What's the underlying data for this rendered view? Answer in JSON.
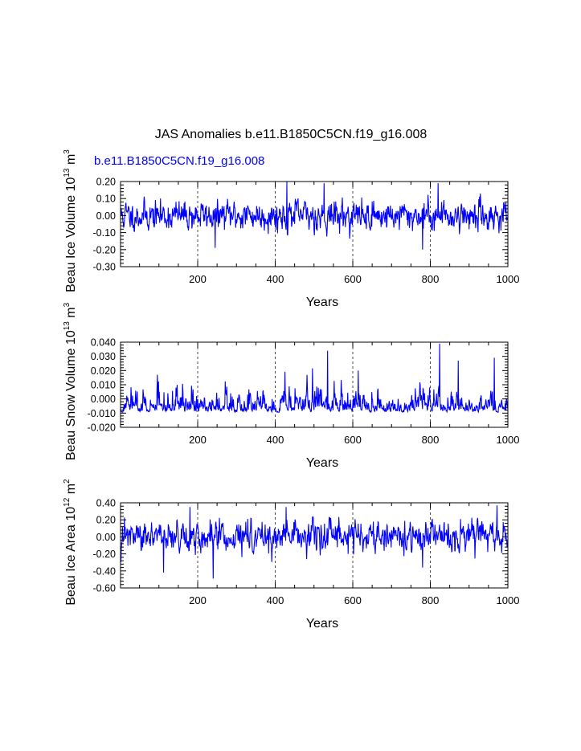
{
  "title": "JAS Anomalies b.e11.B1850C5CN.f19_g16.008",
  "series_label": "b.e11.B1850C5CN.f19_g16.008",
  "colors": {
    "series": "#0000ff",
    "axis": "#000000",
    "grid": "#000000",
    "background": "#ffffff"
  },
  "chart_data": [
    {
      "type": "line",
      "ylabel_main": "Beau Ice Volume 10",
      "ylabel_exp": "13",
      "ylabel_unit": " m",
      "ylabel_unit_exp": "3",
      "xlabel": "Years",
      "xlim": [
        1,
        1000
      ],
      "ylim": [
        -0.3,
        0.2
      ],
      "xticks": [
        200,
        400,
        600,
        800,
        1000
      ],
      "xtick_labels": [
        "200",
        "400",
        "600",
        "800",
        "1000"
      ],
      "yticks": [
        0.2,
        0.1,
        0.0,
        -0.1,
        -0.2,
        -0.3
      ],
      "ytick_labels": [
        "0.20",
        "0.10",
        "0.00",
        "-0.10",
        "-0.20",
        "-0.30"
      ],
      "grid": "vertical dashed at x ticks",
      "data_summary": {
        "n_points": 1000,
        "min": -0.2,
        "max": 0.2,
        "mean": 0.0,
        "amplitude": 0.07,
        "peaks": [
          [
            430,
            0.2
          ],
          [
            820,
            0.19
          ],
          [
            526,
            0.19
          ],
          [
            780,
            -0.2
          ],
          [
            245,
            -0.19
          ]
        ]
      },
      "series": [
        {
          "values_ref": "generated"
        }
      ]
    },
    {
      "type": "line",
      "ylabel_main": "Beau Snow Volume 10",
      "ylabel_exp": "13",
      "ylabel_unit": " m",
      "ylabel_unit_exp": "3",
      "xlabel": "Years",
      "xlim": [
        1,
        1000
      ],
      "ylim": [
        -0.02,
        0.04
      ],
      "xticks": [
        200,
        400,
        600,
        800,
        1000
      ],
      "xtick_labels": [
        "200",
        "400",
        "600",
        "800",
        "1000"
      ],
      "yticks": [
        0.04,
        0.03,
        0.02,
        0.01,
        0.0,
        -0.01,
        -0.02
      ],
      "ytick_labels": [
        "0.040",
        "0.030",
        "0.020",
        "0.010",
        "0.000",
        "-0.010",
        "-0.020"
      ],
      "grid": "vertical dashed at x ticks",
      "data_summary": {
        "n_points": 1000,
        "min": -0.01,
        "max": 0.039,
        "mean": 0.0,
        "skewed": true,
        "peaks": [
          [
            824,
            0.039
          ],
          [
            535,
            0.034
          ],
          [
            965,
            0.029
          ],
          [
            872,
            0.027
          ]
        ]
      },
      "series": [
        {
          "values_ref": "generated"
        }
      ]
    },
    {
      "type": "line",
      "ylabel_main": "Beau Ice Area 10",
      "ylabel_exp": "12",
      "ylabel_unit": " m",
      "ylabel_unit_exp": "2",
      "xlabel": "Years",
      "xlim": [
        1,
        1000
      ],
      "ylim": [
        -0.6,
        0.4
      ],
      "xticks": [
        200,
        400,
        600,
        800,
        1000
      ],
      "xtick_labels": [
        "200",
        "400",
        "600",
        "800",
        "1000"
      ],
      "yticks": [
        0.4,
        0.2,
        0.0,
        -0.2,
        -0.4,
        -0.6
      ],
      "ytick_labels": [
        "0.40",
        "0.20",
        "0.00",
        "-0.20",
        "-0.40",
        "-0.60"
      ],
      "grid": "vertical dashed at x ticks",
      "data_summary": {
        "n_points": 1000,
        "min": -0.49,
        "max": 0.37,
        "mean": 0.0,
        "amplitude": 0.14,
        "peaks": [
          [
            972,
            0.37
          ],
          [
            180,
            0.35
          ],
          [
            428,
            0.35
          ],
          [
            240,
            -0.49
          ],
          [
            112,
            -0.42
          ],
          [
            780,
            -0.36
          ]
        ]
      },
      "series": [
        {
          "values_ref": "generated"
        }
      ]
    }
  ]
}
